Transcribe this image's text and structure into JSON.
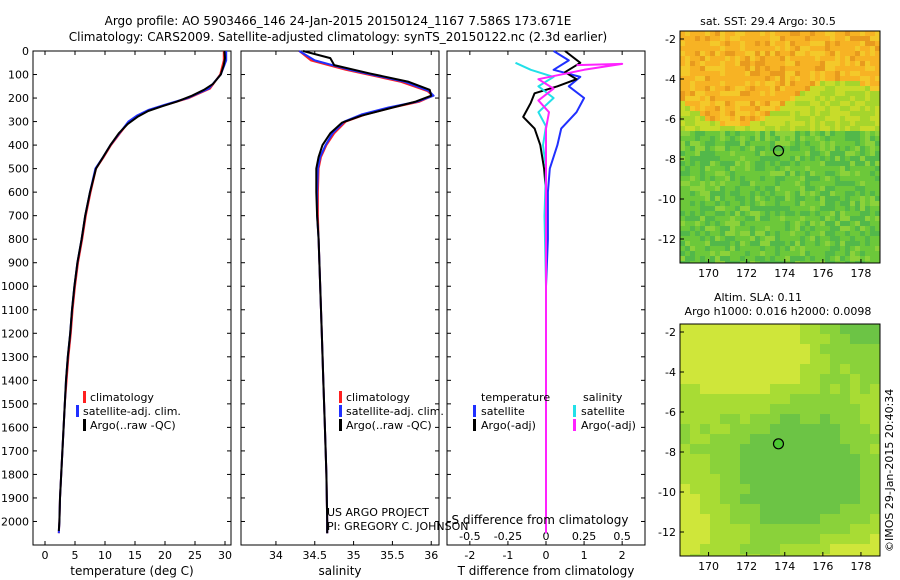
{
  "header": {
    "line1": "Argo profile: AO 5903466_146 24-Jan-2015 20150124_1167 7.586S 173.671E",
    "line2": "Climatology: CARS2009. Satellite-adjusted climatology: synTS_20150122.nc (2.3d earlier)"
  },
  "colors": {
    "climatology": "#ff2020",
    "satellite": "#2030ff",
    "argo": "#000000",
    "sal_satellite": "#22e0e8",
    "sal_argo": "#ff22ff",
    "map_circle": "#4cc832"
  },
  "chart_data": [
    {
      "type": "line",
      "name": "temperature-profile",
      "xlabel": "temperature (deg C)",
      "ylabel": "depth",
      "xlim": [
        -2,
        31
      ],
      "ylim": [
        2100,
        0
      ],
      "xticks": [
        0,
        5,
        10,
        15,
        20,
        25,
        30
      ],
      "yticks": [
        0,
        100,
        200,
        300,
        400,
        500,
        600,
        700,
        800,
        900,
        1000,
        1100,
        1200,
        1300,
        1400,
        1500,
        1600,
        1700,
        1800,
        1900,
        2000
      ],
      "legend": [
        "climatology",
        "satellite-adj. clim.",
        "Argo(..raw -QC)"
      ],
      "series": [
        {
          "name": "climatology",
          "points": [
            [
              29.8,
              0
            ],
            [
              29.8,
              40
            ],
            [
              29.2,
              100
            ],
            [
              27.5,
              160
            ],
            [
              24,
              200
            ],
            [
              20,
              230
            ],
            [
              17.5,
              250
            ],
            [
              15.5,
              275
            ],
            [
              14,
              300
            ],
            [
              12.5,
              350
            ],
            [
              11,
              400
            ],
            [
              9.8,
              450
            ],
            [
              8.5,
              500
            ],
            [
              7.6,
              600
            ],
            [
              6.8,
              700
            ],
            [
              6.2,
              800
            ],
            [
              5.5,
              900
            ],
            [
              5,
              1000
            ],
            [
              4.6,
              1100
            ],
            [
              4.3,
              1200
            ],
            [
              3.9,
              1300
            ],
            [
              3.6,
              1400
            ],
            [
              3.3,
              1500
            ],
            [
              3.1,
              1600
            ],
            [
              2.9,
              1700
            ],
            [
              2.7,
              1800
            ],
            [
              2.5,
              1900
            ],
            [
              2.4,
              2000
            ],
            [
              2.3,
              2050
            ]
          ]
        },
        {
          "name": "satellite-adj. clim.",
          "points": [
            [
              30.2,
              0
            ],
            [
              30.2,
              40
            ],
            [
              29.3,
              100
            ],
            [
              27.3,
              160
            ],
            [
              23.8,
              200
            ],
            [
              19.8,
              230
            ],
            [
              17.3,
              250
            ],
            [
              15.3,
              275
            ],
            [
              13.9,
              300
            ],
            [
              12.4,
              350
            ],
            [
              10.9,
              400
            ],
            [
              9.7,
              450
            ],
            [
              8.4,
              500
            ],
            [
              7.5,
              600
            ],
            [
              6.7,
              700
            ],
            [
              6.1,
              800
            ],
            [
              5.4,
              900
            ],
            [
              4.9,
              1000
            ],
            [
              4.5,
              1100
            ],
            [
              4.2,
              1200
            ],
            [
              3.8,
              1300
            ],
            [
              3.5,
              1400
            ],
            [
              3.3,
              1500
            ],
            [
              3.1,
              1600
            ],
            [
              2.9,
              1700
            ],
            [
              2.7,
              1800
            ],
            [
              2.5,
              1900
            ],
            [
              2.4,
              2000
            ],
            [
              2.3,
              2050
            ]
          ]
        },
        {
          "name": "Argo(..raw -QC)",
          "points": [
            [
              29.9,
              0
            ],
            [
              30,
              30
            ],
            [
              29.8,
              60
            ],
            [
              29.3,
              100
            ],
            [
              28,
              140
            ],
            [
              26.5,
              165
            ],
            [
              24.5,
              190
            ],
            [
              22,
              215
            ],
            [
              19.5,
              235
            ],
            [
              17.2,
              255
            ],
            [
              15.4,
              280
            ],
            [
              13.8,
              310
            ],
            [
              12.3,
              350
            ],
            [
              10.9,
              400
            ],
            [
              9.7,
              450
            ],
            [
              8.5,
              500
            ],
            [
              7.5,
              600
            ],
            [
              6.7,
              700
            ],
            [
              6.1,
              800
            ],
            [
              5.4,
              900
            ],
            [
              4.9,
              1000
            ],
            [
              4.5,
              1100
            ],
            [
              4.2,
              1200
            ],
            [
              3.8,
              1300
            ],
            [
              3.5,
              1400
            ],
            [
              3.3,
              1500
            ],
            [
              3.1,
              1600
            ],
            [
              2.9,
              1700
            ],
            [
              2.7,
              1800
            ],
            [
              2.5,
              1900
            ],
            [
              2.4,
              2000
            ],
            [
              2.3,
              2040
            ]
          ]
        }
      ]
    },
    {
      "type": "line",
      "name": "salinity-profile",
      "xlabel": "salinity",
      "ylabel": "depth",
      "xlim": [
        33.55,
        36.1
      ],
      "ylim": [
        2100,
        0
      ],
      "xticks": [
        34,
        34.5,
        35,
        35.5,
        36
      ],
      "legend": [
        "climatology",
        "satellite-adj. clim.",
        "Argo(..raw -QC)"
      ],
      "credit": [
        "US ARGO PROJECT",
        "PI: GREGORY C. JOHNSON"
      ],
      "series": [
        {
          "name": "climatology",
          "points": [
            [
              34.3,
              0
            ],
            [
              34.45,
              40
            ],
            [
              34.9,
              80
            ],
            [
              35.6,
              130
            ],
            [
              35.95,
              170
            ],
            [
              36.02,
              190
            ],
            [
              35.85,
              215
            ],
            [
              35.5,
              240
            ],
            [
              35.15,
              270
            ],
            [
              34.9,
              300
            ],
            [
              34.75,
              350
            ],
            [
              34.65,
              400
            ],
            [
              34.58,
              450
            ],
            [
              34.55,
              500
            ],
            [
              34.54,
              600
            ],
            [
              34.54,
              700
            ],
            [
              34.55,
              800
            ],
            [
              34.56,
              900
            ],
            [
              34.57,
              1000
            ],
            [
              34.59,
              1200
            ],
            [
              34.61,
              1400
            ],
            [
              34.63,
              1600
            ],
            [
              34.65,
              1800
            ],
            [
              34.66,
              2000
            ],
            [
              34.66,
              2050
            ]
          ]
        },
        {
          "name": "satellite-adj. clim.",
          "points": [
            [
              34.3,
              0
            ],
            [
              34.5,
              40
            ],
            [
              34.95,
              80
            ],
            [
              35.65,
              130
            ],
            [
              35.97,
              170
            ],
            [
              36.03,
              190
            ],
            [
              35.82,
              215
            ],
            [
              35.45,
              240
            ],
            [
              35.1,
              270
            ],
            [
              34.88,
              300
            ],
            [
              34.73,
              350
            ],
            [
              34.64,
              400
            ],
            [
              34.57,
              450
            ],
            [
              34.54,
              500
            ],
            [
              34.53,
              600
            ],
            [
              34.53,
              700
            ],
            [
              34.55,
              800
            ],
            [
              34.56,
              900
            ],
            [
              34.57,
              1000
            ],
            [
              34.59,
              1200
            ],
            [
              34.61,
              1400
            ],
            [
              34.63,
              1600
            ],
            [
              34.65,
              1800
            ],
            [
              34.66,
              2000
            ],
            [
              34.66,
              2050
            ]
          ]
        },
        {
          "name": "Argo(..raw -QC)",
          "points": [
            [
              34.35,
              0
            ],
            [
              34.7,
              30
            ],
            [
              34.75,
              60
            ],
            [
              35.2,
              95
            ],
            [
              35.7,
              130
            ],
            [
              35.98,
              165
            ],
            [
              36.0,
              190
            ],
            [
              35.8,
              215
            ],
            [
              35.45,
              245
            ],
            [
              35.1,
              275
            ],
            [
              34.85,
              305
            ],
            [
              34.7,
              350
            ],
            [
              34.6,
              400
            ],
            [
              34.55,
              450
            ],
            [
              34.52,
              500
            ],
            [
              34.52,
              600
            ],
            [
              34.53,
              700
            ],
            [
              34.55,
              800
            ],
            [
              34.56,
              900
            ],
            [
              34.57,
              1000
            ],
            [
              34.59,
              1200
            ],
            [
              34.61,
              1400
            ],
            [
              34.63,
              1600
            ],
            [
              34.65,
              1800
            ],
            [
              34.66,
              2000
            ],
            [
              34.66,
              2050
            ]
          ]
        }
      ]
    },
    {
      "type": "line",
      "name": "difference-profile",
      "xlabel_bottom": "T difference from climatology",
      "xlabel_top": "S difference from climatology",
      "xlim": [
        -2.6,
        2.6
      ],
      "ylim": [
        2100,
        0
      ],
      "xticks_T": [
        -2,
        -1,
        0,
        1,
        2
      ],
      "xticks_S": [
        -0.5,
        -0.25,
        0,
        0.25,
        0.5
      ],
      "legend_headers": [
        "temperature",
        "salinity"
      ],
      "legend": [
        "satellite",
        "Argo(-adj)",
        "satellite",
        "Argo(-adj)"
      ],
      "series": [
        {
          "name": "T satellite",
          "points": [
            [
              0.2,
              0
            ],
            [
              0.6,
              40
            ],
            [
              0.2,
              80
            ],
            [
              0.9,
              110
            ],
            [
              0.6,
              150
            ],
            [
              1.0,
              200
            ],
            [
              0.8,
              260
            ],
            [
              0.4,
              330
            ],
            [
              0.3,
              400
            ],
            [
              0.1,
              500
            ],
            [
              0.05,
              600
            ],
            [
              0.05,
              800
            ],
            [
              0,
              1000
            ],
            [
              0,
              1500
            ],
            [
              0,
              2050
            ]
          ]
        },
        {
          "name": "T Argo(-adj)",
          "points": [
            [
              0.5,
              0
            ],
            [
              0.9,
              50
            ],
            [
              0.5,
              90
            ],
            [
              0.8,
              120
            ],
            [
              0.3,
              150
            ],
            [
              -0.3,
              180
            ],
            [
              -0.4,
              220
            ],
            [
              -0.6,
              280
            ],
            [
              -0.3,
              330
            ],
            [
              -0.15,
              400
            ],
            [
              -0.05,
              500
            ],
            [
              0,
              600
            ],
            [
              0,
              800
            ],
            [
              0,
              1000
            ],
            [
              0,
              1500
            ],
            [
              0,
              2050
            ]
          ]
        },
        {
          "name": "S satellite",
          "points": [
            [
              -0.2,
              50
            ],
            [
              -0.1,
              80
            ],
            [
              0.05,
              110
            ],
            [
              -0.05,
              150
            ],
            [
              0.05,
              200
            ],
            [
              -0.05,
              260
            ],
            [
              0,
              320
            ],
            [
              -0.02,
              400
            ],
            [
              0,
              500
            ],
            [
              -0.01,
              700
            ],
            [
              0,
              1000
            ],
            [
              0,
              1500
            ],
            [
              0,
              2050
            ]
          ]
        },
        {
          "name": "S Argo(-adj)",
          "points": [
            [
              0.2,
              60
            ],
            [
              0.5,
              55
            ],
            [
              0.25,
              80
            ],
            [
              -0.05,
              120
            ],
            [
              0.05,
              160
            ],
            [
              -0.05,
              210
            ],
            [
              0.02,
              260
            ],
            [
              0,
              330
            ],
            [
              0,
              400
            ],
            [
              0,
              600
            ],
            [
              0,
              1000
            ],
            [
              0,
              1500
            ],
            [
              0,
              2050
            ]
          ]
        }
      ]
    }
  ],
  "maps": {
    "sst": {
      "title": "sat. SST: 29.4  Argo: 30.5",
      "xticks": [
        170,
        172,
        174,
        176,
        178
      ],
      "yticks": [
        -2,
        -4,
        -6,
        -8,
        -10,
        -12
      ],
      "xlim": [
        168.5,
        179
      ],
      "ylim": [
        -13.2,
        -1.6
      ],
      "point": [
        173.67,
        -7.59
      ]
    },
    "sla": {
      "title_line1": "Altim. SLA: 0.11",
      "title_line2": "Argo h1000: 0.016 h2000: 0.0098",
      "xticks": [
        170,
        172,
        174,
        176,
        178
      ],
      "yticks": [
        -2,
        -4,
        -6,
        -8,
        -10,
        -12
      ],
      "xlim": [
        168.5,
        179
      ],
      "ylim": [
        -13.2,
        -1.6
      ],
      "point": [
        173.67,
        -7.59
      ]
    },
    "credit": "©IMOS 29-Jan-2015 20:40:34"
  }
}
